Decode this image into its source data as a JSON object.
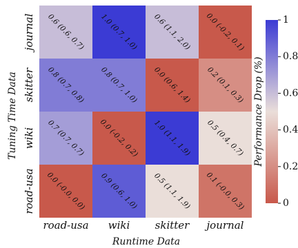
{
  "chart_data": {
    "type": "heatmap",
    "title": "",
    "xlabel": "Runtime Data",
    "ylabel": "Tuning Time Data",
    "x_categories": [
      "road-usa",
      "wiki",
      "skitter",
      "journal"
    ],
    "y_categories": [
      "journal",
      "skitter",
      "wiki",
      "road-usa"
    ],
    "values": [
      [
        0.6,
        1.0,
        0.6,
        0.0
      ],
      [
        0.8,
        0.8,
        0.0,
        0.2
      ],
      [
        0.7,
        0.0,
        1.0,
        0.5
      ],
      [
        0.0,
        0.9,
        0.5,
        0.1
      ]
    ],
    "cell_labels": [
      [
        "0.6 (0.6, 0.7)",
        "1.0 (0.7, 1.0)",
        "0.6 (1.1, 2.0)",
        "0.0 (-0.2, 0.1)"
      ],
      [
        "0.8 (0.7, 0.8)",
        "0.8 (0.7, 1.0)",
        "0.0 (0.6, 1.4)",
        "0.2 (0.1, 0.3)"
      ],
      [
        "0.7 (0.7, 0.7)",
        "0.0 (-0.2, 0.2)",
        "1.0 (1.1, 1.9)",
        "0.5 (0.4, 0.7)"
      ],
      [
        "0.0 (-0.0, 0.0)",
        "0.9 (0.6, 1.0)",
        "0.5 (1.1, 1.9)",
        "0.1 (-0.0, 0.3)"
      ]
    ],
    "colorbar": {
      "label": "Performance Drop (%)",
      "range": [
        0,
        1
      ],
      "ticks": [
        "0",
        "0.2",
        "0.4",
        "0.6",
        "0.8",
        "1"
      ]
    },
    "colormap": {
      "low": "#c8594b",
      "mid": "#eaded9",
      "high": "#3b3bd4"
    }
  }
}
